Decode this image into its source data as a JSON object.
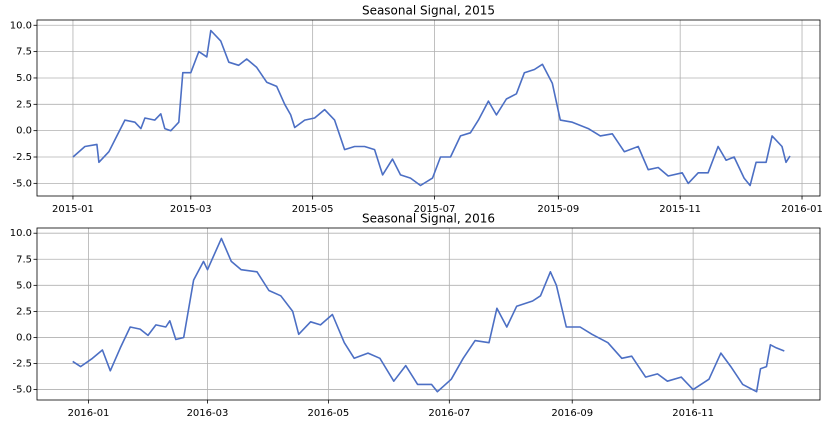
{
  "chart_data": [
    {
      "type": "line",
      "title": "Seasonal Signal, 2015",
      "grid": true,
      "xlim": [
        "2014-12-14",
        "2016-01-10"
      ],
      "xticks": [
        {
          "value": "2015-01-01",
          "label": "2015-01"
        },
        {
          "value": "2015-03-01",
          "label": "2015-03"
        },
        {
          "value": "2015-05-01",
          "label": "2015-05"
        },
        {
          "value": "2015-07-01",
          "label": "2015-07"
        },
        {
          "value": "2015-09-01",
          "label": "2015-09"
        },
        {
          "value": "2015-11-01",
          "label": "2015-11"
        },
        {
          "value": "2016-01-01",
          "label": "2016-01"
        }
      ],
      "ylim": [
        -6.2,
        10.5
      ],
      "yticks": [
        {
          "value": 10,
          "label": "10.0"
        },
        7.5,
        {
          "value": 5,
          "label": "5.0"
        },
        2.5,
        {
          "value": 0,
          "label": "0.0"
        },
        -2.5,
        {
          "value": -5,
          "label": "-5.0"
        }
      ],
      "x": [
        "2015-01-01",
        "2015-01-07",
        "2015-01-13",
        "2015-01-14",
        "2015-01-19",
        "2015-01-23",
        "2015-01-27",
        "2015-02-01",
        "2015-02-04",
        "2015-02-06",
        "2015-02-11",
        "2015-02-14",
        "2015-02-16",
        "2015-02-19",
        "2015-02-23",
        "2015-02-25",
        "2015-03-01",
        "2015-03-05",
        "2015-03-09",
        "2015-03-11",
        "2015-03-16",
        "2015-03-20",
        "2015-03-25",
        "2015-03-29",
        "2015-04-03",
        "2015-04-08",
        "2015-04-13",
        "2015-04-17",
        "2015-04-20",
        "2015-04-22",
        "2015-04-27",
        "2015-05-02",
        "2015-05-07",
        "2015-05-12",
        "2015-05-17",
        "2015-05-22",
        "2015-05-27",
        "2015-06-01",
        "2015-06-05",
        "2015-06-10",
        "2015-06-14",
        "2015-06-19",
        "2015-06-24",
        "2015-06-30",
        "2015-07-04",
        "2015-07-09",
        "2015-07-14",
        "2015-07-19",
        "2015-07-23",
        "2015-07-28",
        "2015-08-01",
        "2015-08-06",
        "2015-08-11",
        "2015-08-15",
        "2015-08-20",
        "2015-08-24",
        "2015-08-29",
        "2015-09-02",
        "2015-09-08",
        "2015-09-16",
        "2015-09-22",
        "2015-09-28",
        "2015-10-04",
        "2015-10-11",
        "2015-10-16",
        "2015-10-21",
        "2015-10-26",
        "2015-11-02",
        "2015-11-05",
        "2015-11-10",
        "2015-11-15",
        "2015-11-20",
        "2015-11-24",
        "2015-11-28",
        "2015-12-03",
        "2015-12-06",
        "2015-12-09",
        "2015-12-14",
        "2015-12-17",
        "2015-12-22",
        "2015-12-24",
        "2015-12-26"
      ],
      "series": [
        {
          "color": "#4c6fc4",
          "values": [
            -2.5,
            -1.5,
            -1.3,
            -3.0,
            -2.0,
            -0.5,
            1.0,
            0.8,
            0.2,
            1.2,
            1.0,
            1.6,
            0.2,
            0.0,
            0.8,
            5.5,
            5.5,
            7.5,
            7.0,
            9.5,
            8.5,
            6.5,
            6.2,
            6.8,
            6.0,
            4.6,
            4.2,
            2.5,
            1.5,
            0.3,
            1.0,
            1.2,
            2.0,
            1.0,
            -1.8,
            -1.5,
            -1.5,
            -1.8,
            -4.2,
            -2.7,
            -4.2,
            -4.5,
            -5.2,
            -4.5,
            -2.5,
            -2.5,
            -0.5,
            -0.2,
            1.0,
            2.8,
            1.5,
            3.0,
            3.5,
            5.5,
            5.8,
            6.3,
            4.5,
            1.0,
            0.8,
            0.2,
            -0.5,
            -0.3,
            -2.0,
            -1.5,
            -3.7,
            -3.5,
            -4.3,
            -4.0,
            -5.0,
            -4.0,
            -4.0,
            -1.5,
            -2.8,
            -2.5,
            -4.5,
            -5.2,
            -3.0,
            -3.0,
            -0.5,
            -1.5,
            -3.0,
            -2.4
          ]
        }
      ]
    },
    {
      "type": "line",
      "title": "Seasonal Signal, 2016",
      "grid": true,
      "xlim": [
        "2015-12-06",
        "2017-01-04"
      ],
      "xticks": [
        {
          "value": "2016-01-01",
          "label": "2016-01"
        },
        {
          "value": "2016-03-01",
          "label": "2016-03"
        },
        {
          "value": "2016-05-01",
          "label": "2016-05"
        },
        {
          "value": "2016-07-01",
          "label": "2016-07"
        },
        {
          "value": "2016-09-01",
          "label": "2016-09"
        },
        {
          "value": "2016-11-01",
          "label": "2016-11"
        }
      ],
      "ylim": [
        -6.0,
        10.5
      ],
      "yticks": [
        {
          "value": 10,
          "label": "10.0"
        },
        7.5,
        {
          "value": 5,
          "label": "5.0"
        },
        2.5,
        {
          "value": 0,
          "label": "0.0"
        },
        -2.5,
        {
          "value": -5,
          "label": "-5.0"
        }
      ],
      "x": [
        "2015-12-24",
        "2015-12-28",
        "2016-01-03",
        "2016-01-08",
        "2016-01-12",
        "2016-01-17",
        "2016-01-22",
        "2016-01-27",
        "2016-01-31",
        "2016-02-04",
        "2016-02-09",
        "2016-02-11",
        "2016-02-14",
        "2016-02-18",
        "2016-02-23",
        "2016-02-28",
        "2016-03-01",
        "2016-03-08",
        "2016-03-13",
        "2016-03-18",
        "2016-03-26",
        "2016-04-01",
        "2016-04-07",
        "2016-04-13",
        "2016-04-16",
        "2016-04-22",
        "2016-04-27",
        "2016-05-03",
        "2016-05-09",
        "2016-05-14",
        "2016-05-21",
        "2016-05-27",
        "2016-06-03",
        "2016-06-09",
        "2016-06-15",
        "2016-06-22",
        "2016-06-25",
        "2016-07-02",
        "2016-07-08",
        "2016-07-14",
        "2016-07-21",
        "2016-07-25",
        "2016-07-30",
        "2016-08-04",
        "2016-08-12",
        "2016-08-16",
        "2016-08-21",
        "2016-08-24",
        "2016-08-29",
        "2016-09-05",
        "2016-09-11",
        "2016-09-19",
        "2016-09-26",
        "2016-10-01",
        "2016-10-08",
        "2016-10-14",
        "2016-10-19",
        "2016-10-26",
        "2016-11-01",
        "2016-11-09",
        "2016-11-15",
        "2016-11-20",
        "2016-11-26",
        "2016-12-03",
        "2016-12-05",
        "2016-12-08",
        "2016-12-10",
        "2016-12-13",
        "2016-12-17"
      ],
      "series": [
        {
          "color": "#4c6fc4",
          "values": [
            -2.3,
            -2.8,
            -2.0,
            -1.2,
            -3.2,
            -1.0,
            1.0,
            0.8,
            0.2,
            1.2,
            1.0,
            1.6,
            -0.2,
            0.0,
            5.5,
            7.3,
            6.5,
            9.5,
            7.3,
            6.5,
            6.3,
            4.5,
            4.0,
            2.5,
            0.3,
            1.5,
            1.2,
            2.2,
            -0.5,
            -2.0,
            -1.5,
            -2.0,
            -4.2,
            -2.7,
            -4.5,
            -4.5,
            -5.2,
            -4.0,
            -2.0,
            -0.3,
            -0.5,
            2.8,
            1.0,
            3.0,
            3.5,
            4.0,
            6.3,
            5.0,
            1.0,
            1.0,
            0.3,
            -0.5,
            -2.0,
            -1.8,
            -3.8,
            -3.5,
            -4.2,
            -3.8,
            -5.0,
            -4.0,
            -1.5,
            -2.8,
            -4.5,
            -5.2,
            -3.0,
            -2.8,
            -0.7,
            -1.0,
            -1.3
          ]
        }
      ]
    }
  ]
}
